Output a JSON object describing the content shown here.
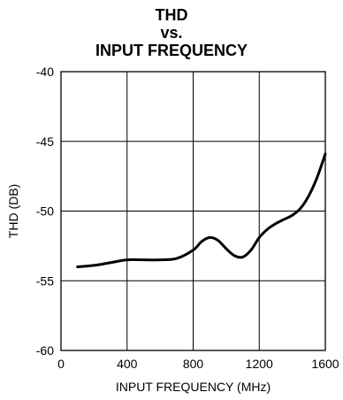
{
  "chart_data": {
    "type": "line",
    "title_lines": [
      "THD",
      "vs.",
      "INPUT FREQUENCY"
    ],
    "xlabel": "INPUT FREQUENCY (MHz)",
    "ylabel": "THD (DB)",
    "xlim": [
      0,
      1600
    ],
    "ylim": [
      -60,
      -40
    ],
    "x_ticks": [
      0,
      400,
      800,
      1200,
      1600
    ],
    "y_ticks": [
      -40,
      -45,
      -50,
      -55,
      -60
    ],
    "grid": true,
    "series": [
      {
        "color": "#000000",
        "x": [
          100,
          200,
          300,
          400,
          500,
          600,
          700,
          800,
          850,
          900,
          950,
          1000,
          1050,
          1100,
          1150,
          1200,
          1250,
          1300,
          1350,
          1400,
          1450,
          1500,
          1550,
          1600
        ],
        "y": [
          -54.0,
          -53.9,
          -53.7,
          -53.5,
          -53.5,
          -53.5,
          -53.4,
          -52.8,
          -52.2,
          -51.9,
          -52.1,
          -52.7,
          -53.2,
          -53.3,
          -52.8,
          -51.9,
          -51.3,
          -50.9,
          -50.6,
          -50.3,
          -49.8,
          -48.9,
          -47.6,
          -45.9
        ]
      }
    ]
  }
}
